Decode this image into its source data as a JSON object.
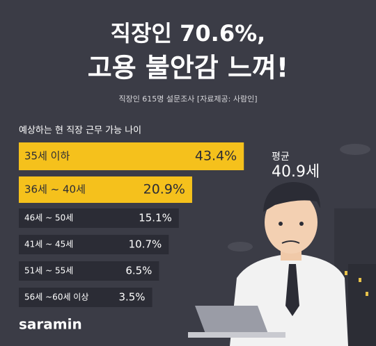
{
  "chart_data": {
    "type": "bar",
    "title_lines": [
      "직장인 70.6%,",
      "고용 불안감 느껴!"
    ],
    "subtitle": "직장인 615명 설문조사 [자료제공: 사람인]",
    "chart_title": "예상하는 현 직장 근무 가능 나이",
    "categories": [
      "35세 이하",
      "36세 ~ 40세",
      "46세 ~ 50세",
      "41세 ~ 45세",
      "51세 ~ 55세",
      "56세 ~60세 이상"
    ],
    "values": [
      43.4,
      20.9,
      15.1,
      10.7,
      6.5,
      3.5
    ],
    "value_labels": [
      "43.4%",
      "20.9%",
      "15.1%",
      "10.7%",
      "6.5%",
      "3.5%"
    ],
    "colors": [
      "#f5c11c",
      "#f5c11c",
      "#2b2c35",
      "#2b2c35",
      "#2b2c35",
      "#2b2c35"
    ],
    "average_label": "평균",
    "average_value": "40.9세",
    "brand": "saramin"
  }
}
